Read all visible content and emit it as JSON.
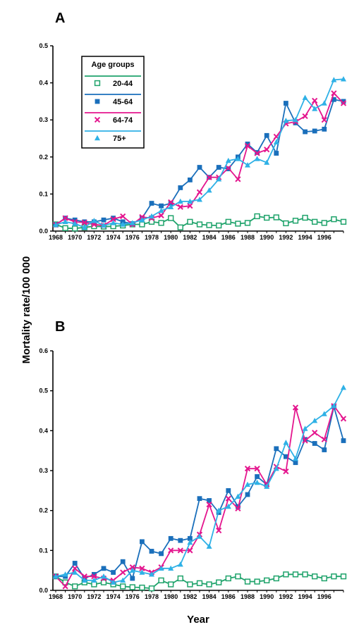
{
  "figure": {
    "ylabel": "Mortality rate/100 000",
    "xlabel": "Year"
  },
  "legend": {
    "title": "Age groups",
    "placement": "top-left inside panel A"
  },
  "colors": {
    "20-44": "#1fa36b",
    "45-64": "#1a6fbb",
    "64-74": "#e4168e",
    "75+": "#2fb1e6"
  },
  "chart_data": [
    {
      "panel": "A",
      "type": "line",
      "x": [
        1968,
        1969,
        1970,
        1971,
        1972,
        1973,
        1974,
        1975,
        1976,
        1977,
        1978,
        1979,
        1980,
        1981,
        1982,
        1983,
        1984,
        1985,
        1986,
        1987,
        1988,
        1989,
        1990,
        1991,
        1992,
        1993,
        1994,
        1995,
        1996,
        1997,
        1998
      ],
      "xticks": [
        "1968",
        "1970",
        "1972",
        "1974",
        "1976",
        "1978",
        "1980",
        "1982",
        "1984",
        "1986",
        "1988",
        "1990",
        "1992",
        "1994",
        "1996"
      ],
      "yticks": [
        "0.0",
        "0.1",
        "0.2",
        "0.3",
        "0.4",
        "0.5"
      ],
      "ylim": [
        0,
        0.5
      ],
      "grid": false,
      "series": [
        {
          "name": "20-44",
          "marker": "open-square",
          "values": [
            0.018,
            0.008,
            0.007,
            0.01,
            0.013,
            0.012,
            0.013,
            0.015,
            0.018,
            0.018,
            0.025,
            0.022,
            0.035,
            0.01,
            0.025,
            0.018,
            0.016,
            0.015,
            0.025,
            0.02,
            0.022,
            0.04,
            0.036,
            0.037,
            0.021,
            0.028,
            0.036,
            0.025,
            0.022,
            0.032,
            0.025
          ]
        },
        {
          "name": "45-64",
          "marker": "filled-square",
          "values": [
            0.017,
            0.035,
            0.03,
            0.025,
            0.025,
            0.03,
            0.035,
            0.025,
            0.02,
            0.035,
            0.075,
            0.068,
            0.075,
            0.117,
            0.138,
            0.172,
            0.145,
            0.172,
            0.168,
            0.2,
            0.235,
            0.212,
            0.258,
            0.21,
            0.345,
            0.292,
            0.268,
            0.27,
            0.275,
            0.355,
            0.35
          ]
        },
        {
          "name": "64-74",
          "marker": "cross",
          "values": [
            0.017,
            0.035,
            0.025,
            0.023,
            0.018,
            0.015,
            0.032,
            0.04,
            0.018,
            0.038,
            0.035,
            0.042,
            0.078,
            0.065,
            0.068,
            0.105,
            0.145,
            0.145,
            0.17,
            0.14,
            0.23,
            0.21,
            0.22,
            0.255,
            0.29,
            0.295,
            0.31,
            0.352,
            0.3,
            0.372,
            0.345
          ]
        },
        {
          "name": "75+",
          "marker": "filled-triangle",
          "values": [
            0.017,
            0.025,
            0.02,
            0.01,
            0.028,
            0.015,
            0.022,
            0.018,
            0.022,
            0.03,
            0.04,
            0.055,
            0.065,
            0.08,
            0.08,
            0.085,
            0.11,
            0.14,
            0.19,
            0.195,
            0.178,
            0.195,
            0.185,
            0.24,
            0.298,
            0.3,
            0.36,
            0.33,
            0.345,
            0.408,
            0.41
          ]
        }
      ]
    },
    {
      "panel": "B",
      "type": "line",
      "x": [
        1968,
        1969,
        1970,
        1971,
        1972,
        1973,
        1974,
        1975,
        1976,
        1977,
        1978,
        1979,
        1980,
        1981,
        1982,
        1983,
        1984,
        1985,
        1986,
        1987,
        1988,
        1989,
        1990,
        1991,
        1992,
        1993,
        1994,
        1995,
        1996,
        1997,
        1998
      ],
      "xticks": [
        "1968",
        "1970",
        "1972",
        "1974",
        "1976",
        "1978",
        "1980",
        "1982",
        "1984",
        "1986",
        "1988",
        "1990",
        "1992",
        "1994",
        "1996"
      ],
      "yticks": [
        "0.0",
        "0.1",
        "0.2",
        "0.3",
        "0.4",
        "0.5",
        "0.6"
      ],
      "ylim": [
        0,
        0.6
      ],
      "grid": false,
      "series": [
        {
          "name": "20-44",
          "marker": "open-square",
          "values": [
            0.035,
            0.02,
            0.01,
            0.02,
            0.015,
            0.02,
            0.015,
            0.01,
            0.008,
            0.007,
            0.005,
            0.025,
            0.015,
            0.03,
            0.015,
            0.018,
            0.015,
            0.02,
            0.03,
            0.035,
            0.022,
            0.022,
            0.025,
            0.03,
            0.04,
            0.04,
            0.04,
            0.035,
            0.03,
            0.035,
            0.035
          ]
        },
        {
          "name": "45-64",
          "marker": "filled-square",
          "values": [
            0.035,
            0.035,
            0.068,
            0.03,
            0.04,
            0.055,
            0.045,
            0.072,
            0.03,
            0.122,
            0.098,
            0.092,
            0.13,
            0.125,
            0.13,
            0.23,
            0.225,
            0.195,
            0.25,
            0.21,
            0.24,
            0.285,
            0.265,
            0.355,
            0.335,
            0.32,
            0.378,
            0.368,
            0.352,
            0.46,
            0.375
          ]
        },
        {
          "name": "64-74",
          "marker": "cross",
          "values": [
            0.035,
            0.01,
            0.055,
            0.035,
            0.035,
            0.03,
            0.025,
            0.045,
            0.058,
            0.055,
            0.045,
            0.058,
            0.1,
            0.1,
            0.1,
            0.14,
            0.215,
            0.15,
            0.23,
            0.205,
            0.305,
            0.305,
            0.265,
            0.31,
            0.298,
            0.458,
            0.375,
            0.395,
            0.378,
            0.462,
            0.43
          ]
        },
        {
          "name": "75+",
          "marker": "filled-triangle",
          "values": [
            0.035,
            0.04,
            0.045,
            0.025,
            0.025,
            0.035,
            0.02,
            0.025,
            0.05,
            0.045,
            0.04,
            0.055,
            0.055,
            0.065,
            0.12,
            0.135,
            0.11,
            0.2,
            0.21,
            0.235,
            0.265,
            0.27,
            0.26,
            0.305,
            0.37,
            0.33,
            0.405,
            0.425,
            0.442,
            0.462,
            0.508
          ]
        }
      ]
    }
  ]
}
